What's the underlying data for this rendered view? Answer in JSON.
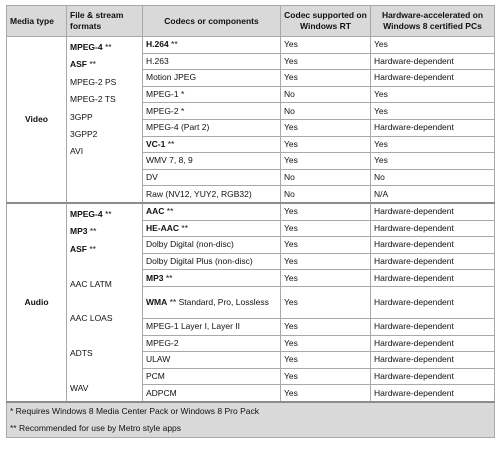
{
  "headers": {
    "media_type": "Media type",
    "formats": "File & stream formats",
    "codecs": "Codecs or components",
    "windows_rt": "Codec supported on Windows RT",
    "hw_accel": "Hardware-accelerated on Windows 8 certified PCs"
  },
  "video": {
    "label": "Video",
    "formats": [
      {
        "name": "MPEG-4",
        "mark": " **",
        "bold": true
      },
      {
        "name": "ASF",
        "mark": " **",
        "bold": true
      },
      {
        "name": "MPEG-2 PS",
        "mark": "",
        "bold": false
      },
      {
        "name": "MPEG-2 TS",
        "mark": "",
        "bold": false
      },
      {
        "name": "3GPP",
        "mark": "",
        "bold": false
      },
      {
        "name": "3GPP2",
        "mark": "",
        "bold": false
      },
      {
        "name": "AVI",
        "mark": "",
        "bold": false
      }
    ],
    "rows": [
      {
        "codec": "H.264",
        "mark": " **",
        "bold": true,
        "rt": "Yes",
        "hw": "Yes"
      },
      {
        "codec": "H.263",
        "mark": "",
        "bold": false,
        "rt": "Yes",
        "hw": "Hardware-dependent"
      },
      {
        "codec": "Motion JPEG",
        "mark": "",
        "bold": false,
        "rt": "Yes",
        "hw": "Hardware-dependent"
      },
      {
        "codec": "MPEG-1",
        "mark": " *",
        "bold": false,
        "rt": "No",
        "hw": "Yes"
      },
      {
        "codec": "MPEG-2",
        "mark": " *",
        "bold": false,
        "rt": "No",
        "hw": "Yes"
      },
      {
        "codec": "MPEG-4 (Part 2)",
        "mark": "",
        "bold": false,
        "rt": "Yes",
        "hw": "Hardware-dependent"
      },
      {
        "codec": "VC-1",
        "mark": " **",
        "bold": true,
        "rt": "Yes",
        "hw": "Yes"
      },
      {
        "codec": "WMV 7, 8, 9",
        "mark": "",
        "bold": false,
        "rt": "Yes",
        "hw": "Yes"
      },
      {
        "codec": "DV",
        "mark": "",
        "bold": false,
        "rt": "No",
        "hw": "No"
      },
      {
        "codec": "Raw (NV12, YUY2, RGB32)",
        "mark": "",
        "bold": false,
        "rt": "No",
        "hw": "N/A"
      }
    ]
  },
  "audio": {
    "label": "Audio",
    "formats": [
      {
        "name": "MPEG-4",
        "mark": " **",
        "bold": true
      },
      {
        "name": "MP3",
        "mark": " **",
        "bold": true
      },
      {
        "name": "ASF",
        "mark": " **",
        "bold": true
      },
      {
        "name": "",
        "mark": "",
        "bold": false
      },
      {
        "name": "AAC LATM",
        "mark": "",
        "bold": false
      },
      {
        "name": "",
        "mark": "",
        "bold": false
      },
      {
        "name": "AAC LOAS",
        "mark": "",
        "bold": false
      },
      {
        "name": "",
        "mark": "",
        "bold": false
      },
      {
        "name": "ADTS",
        "mark": "",
        "bold": false
      },
      {
        "name": "",
        "mark": "",
        "bold": false
      },
      {
        "name": "WAV",
        "mark": "",
        "bold": false
      }
    ],
    "rows": [
      {
        "codec": "AAC",
        "mark": " **",
        "bold": true,
        "rt": "Yes",
        "hw": "Hardware-dependent"
      },
      {
        "codec": "HE-AAC",
        "mark": " **",
        "bold": true,
        "rt": "Yes",
        "hw": "Hardware-dependent"
      },
      {
        "codec": "Dolby Digital (non-disc)",
        "mark": "",
        "bold": false,
        "rt": "Yes",
        "hw": "Hardware-dependent"
      },
      {
        "codec": "Dolby Digital Plus (non-disc)",
        "mark": "",
        "bold": false,
        "rt": "Yes",
        "hw": "Hardware-dependent"
      },
      {
        "codec": "MP3",
        "mark": " **",
        "bold": true,
        "rt": "Yes",
        "hw": "Hardware-dependent"
      },
      {
        "codec": "WMA",
        "mark": " ** Standard, Pro, Lossless",
        "bold": true,
        "rt": "Yes",
        "hw": "Hardware-dependent",
        "tall": true
      },
      {
        "codec": "MPEG-1 Layer I, Layer II",
        "mark": "",
        "bold": false,
        "rt": "Yes",
        "hw": "Hardware-dependent"
      },
      {
        "codec": "MPEG-2",
        "mark": "",
        "bold": false,
        "rt": "Yes",
        "hw": "Hardware-dependent"
      },
      {
        "codec": "ULAW",
        "mark": "",
        "bold": false,
        "rt": "Yes",
        "hw": "Hardware-dependent"
      },
      {
        "codec": "PCM",
        "mark": "",
        "bold": false,
        "rt": "Yes",
        "hw": "Hardware-dependent"
      },
      {
        "codec": "ADPCM",
        "mark": "",
        "bold": false,
        "rt": "Yes",
        "hw": "Hardware-dependent"
      }
    ]
  },
  "footnotes": [
    "* Requires Windows 8 Media Center Pack or Windows 8 Pro Pack",
    "** Recommended for use by Metro style apps"
  ]
}
